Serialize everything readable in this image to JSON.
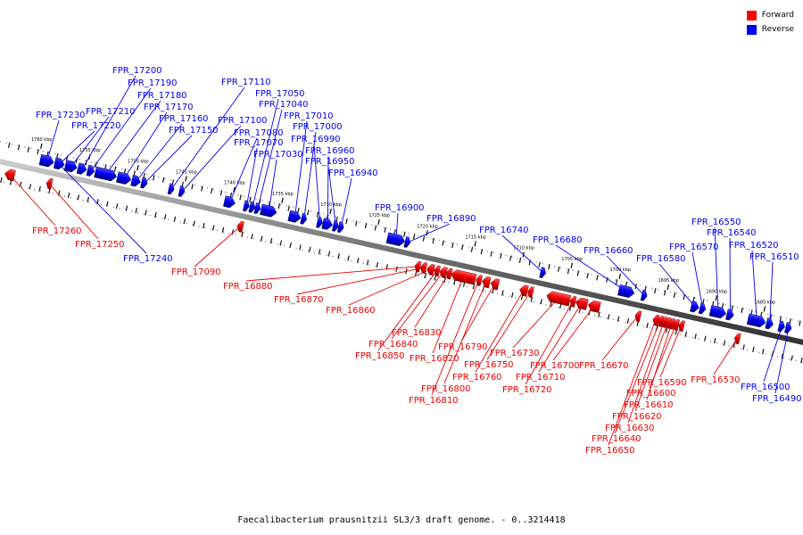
{
  "legend": [
    {
      "label": "Forward",
      "color": "#ff0000"
    },
    {
      "label": "Reverse",
      "color": "#0000ff"
    }
  ],
  "caption": "Faecalibacterium prausnitzii SL3/3 draft genome. - 0..3214418",
  "colors": {
    "forward": "#ee0000",
    "reverse": "#0000ee",
    "track": "#7a7a7a"
  },
  "ticks": [
    {
      "kbp": 1760,
      "label": "1760 kbp"
    },
    {
      "kbp": 1755,
      "label": "1755 kbp"
    },
    {
      "kbp": 1750,
      "label": "1750 kbp"
    },
    {
      "kbp": 1745,
      "label": "1745 kbp"
    },
    {
      "kbp": 1740,
      "label": "1740 kbp"
    },
    {
      "kbp": 1735,
      "label": "1735 kbp"
    },
    {
      "kbp": 1730,
      "label": "1730 kbp"
    },
    {
      "kbp": 1725,
      "label": "1725 kbp"
    },
    {
      "kbp": 1720,
      "label": "1720 kbp"
    },
    {
      "kbp": 1715,
      "label": "1715 kbp"
    },
    {
      "kbp": 1710,
      "label": "1710 kbp"
    },
    {
      "kbp": 1705,
      "label": "1705 kbp"
    },
    {
      "kbp": 1700,
      "label": "1700 kbp"
    },
    {
      "kbp": 1695,
      "label": "1695 kbp"
    },
    {
      "kbp": 1690,
      "label": "1690 kbp"
    },
    {
      "kbp": 1685,
      "label": "1685 kbp"
    }
  ],
  "genes": [
    {
      "name": "FPR_17260",
      "strand": "forward",
      "start": 1763.0,
      "end": 1762.0
    },
    {
      "name": "FPR_17250",
      "strand": "forward",
      "start": 1758.6,
      "end": 1758.2
    },
    {
      "name": "FPR_17240",
      "strand": "reverse",
      "start": 1758.2,
      "end": 1757.6
    },
    {
      "name": "FPR_17230",
      "strand": "reverse",
      "start": 1759.8,
      "end": 1758.4
    },
    {
      "name": "FPR_17220",
      "strand": "reverse",
      "start": 1758.3,
      "end": 1757.3
    },
    {
      "name": "FPR_17210",
      "strand": "reverse",
      "start": 1757.2,
      "end": 1756.0
    },
    {
      "name": "FPR_17200",
      "strand": "reverse",
      "start": 1755.9,
      "end": 1755.0
    },
    {
      "name": "FPR_17190",
      "strand": "reverse",
      "start": 1754.9,
      "end": 1754.2
    },
    {
      "name": "FPR_17180",
      "strand": "reverse",
      "start": 1754.1,
      "end": 1751.9
    },
    {
      "name": "FPR_17170",
      "strand": "reverse",
      "start": 1751.8,
      "end": 1750.4
    },
    {
      "name": "FPR_17160",
      "strand": "reverse",
      "start": 1750.3,
      "end": 1749.4
    },
    {
      "name": "FPR_17150",
      "strand": "reverse",
      "start": 1749.3,
      "end": 1748.7
    },
    {
      "name": "FPR_17110",
      "strand": "reverse",
      "start": 1746.4,
      "end": 1746.0
    },
    {
      "name": "FPR_17100",
      "strand": "reverse",
      "start": 1745.3,
      "end": 1744.9
    },
    {
      "name": "FPR_17090",
      "strand": "forward",
      "start": 1738.9,
      "end": 1738.3
    },
    {
      "name": "FPR_17080",
      "strand": "reverse",
      "start": 1740.7,
      "end": 1739.6
    },
    {
      "name": "FPR_17070",
      "strand": "reverse",
      "start": 1738.6,
      "end": 1738.2
    },
    {
      "name": "FPR_17050",
      "strand": "reverse",
      "start": 1738.0,
      "end": 1737.6
    },
    {
      "name": "FPR_17040",
      "strand": "reverse",
      "start": 1737.5,
      "end": 1737.0
    },
    {
      "name": "FPR_17030",
      "strand": "reverse",
      "start": 1736.9,
      "end": 1735.3
    },
    {
      "name": "FPR_17010",
      "strand": "reverse",
      "start": 1734.0,
      "end": 1732.8
    },
    {
      "name": "FPR_17000",
      "strand": "reverse",
      "start": 1732.7,
      "end": 1732.2
    },
    {
      "name": "FPR_16990",
      "strand": "reverse",
      "start": 1731.0,
      "end": 1730.6
    },
    {
      "name": "FPR_16960",
      "strand": "reverse",
      "start": 1730.5,
      "end": 1729.5
    },
    {
      "name": "FPR_16950",
      "strand": "reverse",
      "start": 1729.4,
      "end": 1728.9
    },
    {
      "name": "FPR_16940",
      "strand": "reverse",
      "start": 1728.8,
      "end": 1728.4
    },
    {
      "name": "FPR_16900",
      "strand": "reverse",
      "start": 1723.8,
      "end": 1722.0
    },
    {
      "name": "FPR_16890",
      "strand": "reverse",
      "start": 1721.9,
      "end": 1721.5
    },
    {
      "name": "FPR_16880",
      "strand": "forward",
      "start": 1720.4,
      "end": 1720.0
    },
    {
      "name": "FPR_16870",
      "strand": "forward",
      "start": 1719.9,
      "end": 1719.3
    },
    {
      "name": "FPR_16860",
      "strand": "forward",
      "start": 1719.2,
      "end": 1718.5
    },
    {
      "name": "FPR_16850",
      "strand": "forward",
      "start": 1718.4,
      "end": 1718.0
    },
    {
      "name": "FPR_16840",
      "strand": "forward",
      "start": 1717.9,
      "end": 1717.2
    },
    {
      "name": "FPR_16830",
      "strand": "forward",
      "start": 1717.1,
      "end": 1716.8
    },
    {
      "name": "FPR_16820",
      "strand": "forward",
      "start": 1716.7,
      "end": 1714.2
    },
    {
      "name": "FPR_16810",
      "strand": "forward",
      "start": 1714.1,
      "end": 1713.6
    },
    {
      "name": "FPR_16800",
      "strand": "forward",
      "start": 1713.5,
      "end": 1712.7
    },
    {
      "name": "FPR_16790",
      "strand": "forward",
      "start": 1712.6,
      "end": 1711.8
    },
    {
      "name": "FPR_16760",
      "strand": "forward",
      "start": 1709.6,
      "end": 1708.8
    },
    {
      "name": "FPR_16750",
      "strand": "forward",
      "start": 1708.7,
      "end": 1708.3
    },
    {
      "name": "FPR_16740",
      "strand": "reverse",
      "start": 1707.9,
      "end": 1707.4
    },
    {
      "name": "FPR_16730",
      "strand": "forward",
      "start": 1706.8,
      "end": 1704.4
    },
    {
      "name": "FPR_16720",
      "strand": "forward",
      "start": 1704.3,
      "end": 1703.9
    },
    {
      "name": "FPR_16710",
      "strand": "forward",
      "start": 1703.8,
      "end": 1702.6
    },
    {
      "name": "FPR_16700",
      "strand": "forward",
      "start": 1702.5,
      "end": 1701.3
    },
    {
      "name": "FPR_16680",
      "strand": "reverse",
      "start": 1699.8,
      "end": 1698.2
    },
    {
      "name": "FPR_16670",
      "strand": "forward",
      "start": 1697.6,
      "end": 1697.1
    },
    {
      "name": "FPR_16660",
      "strand": "reverse",
      "start": 1697.4,
      "end": 1696.9
    },
    {
      "name": "FPR_16650",
      "strand": "forward",
      "start": 1695.7,
      "end": 1695.3
    },
    {
      "name": "FPR_16640",
      "strand": "forward",
      "start": 1695.2,
      "end": 1694.9
    },
    {
      "name": "FPR_16630",
      "strand": "forward",
      "start": 1694.8,
      "end": 1694.5
    },
    {
      "name": "FPR_16620",
      "strand": "forward",
      "start": 1694.4,
      "end": 1694.1
    },
    {
      "name": "FPR_16610",
      "strand": "forward",
      "start": 1694.0,
      "end": 1693.7
    },
    {
      "name": "FPR_16600",
      "strand": "forward",
      "start": 1693.6,
      "end": 1693.2
    },
    {
      "name": "FPR_16590",
      "strand": "forward",
      "start": 1693.1,
      "end": 1692.6
    },
    {
      "name": "FPR_16580",
      "strand": "reverse",
      "start": 1692.3,
      "end": 1691.5
    },
    {
      "name": "FPR_16570",
      "strand": "reverse",
      "start": 1691.4,
      "end": 1690.8
    },
    {
      "name": "FPR_16550",
      "strand": "reverse",
      "start": 1690.3,
      "end": 1688.7
    },
    {
      "name": "FPR_16540",
      "strand": "reverse",
      "start": 1688.6,
      "end": 1687.9
    },
    {
      "name": "FPR_16530",
      "strand": "forward",
      "start": 1687.3,
      "end": 1686.8
    },
    {
      "name": "FPR_16520",
      "strand": "reverse",
      "start": 1686.4,
      "end": 1684.6
    },
    {
      "name": "FPR_16510",
      "strand": "reverse",
      "start": 1684.5,
      "end": 1683.8
    },
    {
      "name": "FPR_16500",
      "strand": "reverse",
      "start": 1683.2,
      "end": 1682.6
    },
    {
      "name": "FPR_16490",
      "strand": "reverse",
      "start": 1682.5,
      "end": 1681.9
    }
  ]
}
